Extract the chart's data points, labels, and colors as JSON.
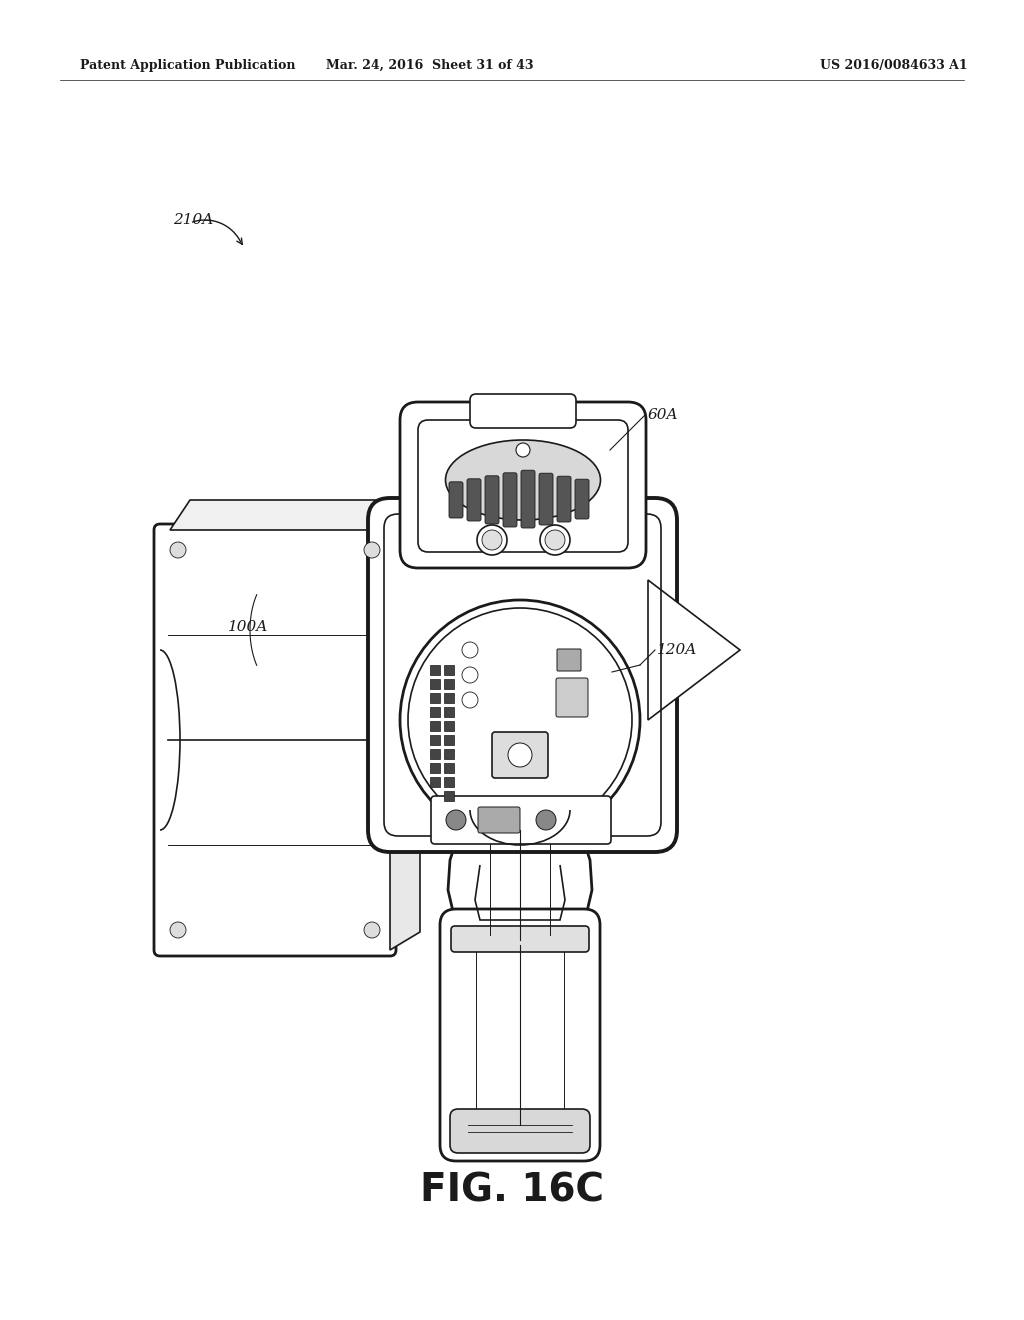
{
  "background_color": "#ffffff",
  "header_left": "Patent Application Publication",
  "header_mid": "Mar. 24, 2016  Sheet 31 of 43",
  "header_right": "US 2016/0084633 A1",
  "figure_label": "FIG. 16C",
  "line_color": "#1a1a1a",
  "text_color": "#1a1a1a",
  "label_210A": [
    0.175,
    0.845
  ],
  "label_60A": [
    0.638,
    0.692
  ],
  "label_100A": [
    0.23,
    0.53
  ],
  "label_120A": [
    0.608,
    0.518
  ]
}
